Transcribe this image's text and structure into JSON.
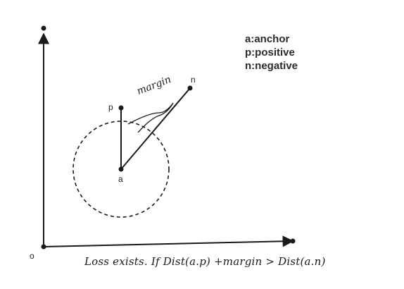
{
  "legend": {
    "items": [
      "a:anchor",
      "p:positive",
      "n:negative"
    ]
  },
  "points": {
    "a": "a",
    "p": "p",
    "n": "n",
    "origin": "o"
  },
  "annotation": {
    "margin": "margin"
  },
  "caption": "Loss exists. If Dist(a.p) +margin > Dist(a.n)",
  "colors": {
    "ink": "#1a1a1a",
    "legend_text": "#2a2a2a",
    "background": "#ffffff"
  }
}
